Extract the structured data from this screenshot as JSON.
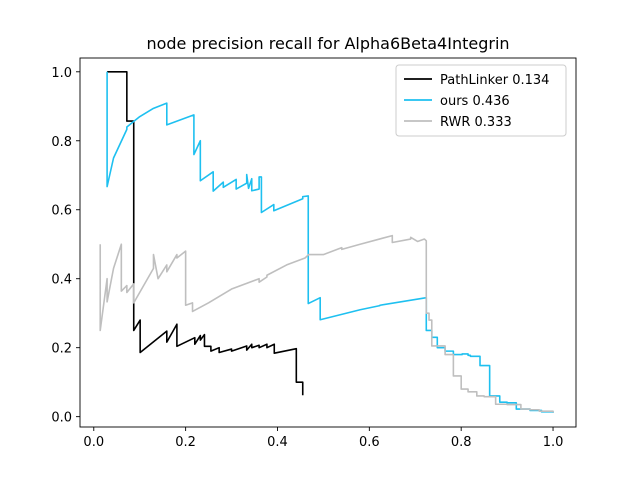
{
  "chart_data": {
    "type": "line",
    "title": "node precision recall for Alpha6Beta4Integrin",
    "xlabel": "",
    "ylabel": "",
    "xlim": [
      -0.03,
      1.05
    ],
    "ylim": [
      -0.03,
      1.04
    ],
    "xticks": [
      0.0,
      0.2,
      0.4,
      0.6,
      0.8,
      1.0
    ],
    "xtick_labels": [
      "0.0",
      "0.2",
      "0.4",
      "0.6",
      "0.8",
      "1.0"
    ],
    "yticks": [
      0.0,
      0.2,
      0.4,
      0.6,
      0.8,
      1.0
    ],
    "ytick_labels": [
      "0.0",
      "0.2",
      "0.4",
      "0.6",
      "0.8",
      "1.0"
    ],
    "grid": false,
    "legend_position": "top-right",
    "series": [
      {
        "name": "PathLinker 0.134",
        "color": "#000000",
        "points": [
          [
            0.029,
            1.0
          ],
          [
            0.072,
            1.0
          ],
          [
            0.072,
            0.857
          ],
          [
            0.087,
            0.857
          ],
          [
            0.087,
            0.25
          ],
          [
            0.101,
            0.28
          ],
          [
            0.101,
            0.186
          ],
          [
            0.159,
            0.248
          ],
          [
            0.159,
            0.216
          ],
          [
            0.181,
            0.268
          ],
          [
            0.181,
            0.204
          ],
          [
            0.22,
            0.229
          ],
          [
            0.22,
            0.21
          ],
          [
            0.232,
            0.235
          ],
          [
            0.232,
            0.222
          ],
          [
            0.241,
            0.238
          ],
          [
            0.241,
            0.204
          ],
          [
            0.255,
            0.204
          ],
          [
            0.255,
            0.19
          ],
          [
            0.273,
            0.2
          ],
          [
            0.273,
            0.186
          ],
          [
            0.3,
            0.196
          ],
          [
            0.3,
            0.19
          ],
          [
            0.333,
            0.205
          ],
          [
            0.333,
            0.193
          ],
          [
            0.344,
            0.21
          ],
          [
            0.344,
            0.2
          ],
          [
            0.36,
            0.207
          ],
          [
            0.36,
            0.2
          ],
          [
            0.377,
            0.21
          ],
          [
            0.377,
            0.2
          ],
          [
            0.393,
            0.21
          ],
          [
            0.393,
            0.184
          ],
          [
            0.441,
            0.197
          ],
          [
            0.441,
            0.1
          ],
          [
            0.455,
            0.1
          ],
          [
            0.455,
            0.062
          ]
        ]
      },
      {
        "name": "ours 0.436",
        "color": "#1ec0f0",
        "points": [
          [
            0.029,
            1.0
          ],
          [
            0.029,
            0.667
          ],
          [
            0.043,
            0.75
          ],
          [
            0.072,
            0.833
          ],
          [
            0.072,
            0.84
          ],
          [
            0.1,
            0.87
          ],
          [
            0.13,
            0.894
          ],
          [
            0.159,
            0.909
          ],
          [
            0.159,
            0.846
          ],
          [
            0.218,
            0.875
          ],
          [
            0.218,
            0.76
          ],
          [
            0.232,
            0.8
          ],
          [
            0.232,
            0.684
          ],
          [
            0.26,
            0.71
          ],
          [
            0.26,
            0.654
          ],
          [
            0.282,
            0.68
          ],
          [
            0.282,
            0.665
          ],
          [
            0.31,
            0.688
          ],
          [
            0.31,
            0.66
          ],
          [
            0.333,
            0.677
          ],
          [
            0.333,
            0.702
          ],
          [
            0.337,
            0.662
          ],
          [
            0.344,
            0.69
          ],
          [
            0.344,
            0.655
          ],
          [
            0.36,
            0.66
          ],
          [
            0.36,
            0.695
          ],
          [
            0.365,
            0.695
          ],
          [
            0.365,
            0.592
          ],
          [
            0.392,
            0.615
          ],
          [
            0.392,
            0.597
          ],
          [
            0.455,
            0.632
          ],
          [
            0.455,
            0.638
          ],
          [
            0.467,
            0.64
          ],
          [
            0.467,
            0.328
          ],
          [
            0.493,
            0.345
          ],
          [
            0.493,
            0.281
          ],
          [
            0.58,
            0.31
          ],
          [
            0.58,
            0.31
          ],
          [
            0.623,
            0.322
          ],
          [
            0.623,
            0.323
          ],
          [
            0.724,
            0.345
          ],
          [
            0.724,
            0.25
          ],
          [
            0.736,
            0.25
          ],
          [
            0.736,
            0.23
          ],
          [
            0.748,
            0.23
          ],
          [
            0.748,
            0.2
          ],
          [
            0.765,
            0.2
          ],
          [
            0.765,
            0.19
          ],
          [
            0.783,
            0.19
          ],
          [
            0.783,
            0.18
          ],
          [
            0.802,
            0.18
          ],
          [
            0.802,
            0.182
          ],
          [
            0.815,
            0.182
          ],
          [
            0.815,
            0.178
          ],
          [
            0.82,
            0.178
          ],
          [
            0.82,
            0.175
          ],
          [
            0.841,
            0.175
          ],
          [
            0.841,
            0.148
          ],
          [
            0.862,
            0.148
          ],
          [
            0.862,
            0.06
          ],
          [
            0.884,
            0.06
          ],
          [
            0.884,
            0.042
          ],
          [
            0.9,
            0.042
          ],
          [
            0.9,
            0.04
          ],
          [
            0.92,
            0.04
          ],
          [
            0.92,
            0.022
          ],
          [
            0.95,
            0.022
          ],
          [
            0.95,
            0.018
          ],
          [
            0.975,
            0.018
          ],
          [
            0.975,
            0.014
          ],
          [
            1.0,
            0.014
          ],
          [
            1.0,
            0.011
          ]
        ]
      },
      {
        "name": "RWR 0.333",
        "color": "#bfbfbf",
        "points": [
          [
            0.014,
            0.5
          ],
          [
            0.014,
            0.25
          ],
          [
            0.029,
            0.4
          ],
          [
            0.029,
            0.333
          ],
          [
            0.043,
            0.43
          ],
          [
            0.06,
            0.5
          ],
          [
            0.06,
            0.364
          ],
          [
            0.072,
            0.38
          ],
          [
            0.072,
            0.36
          ],
          [
            0.087,
            0.385
          ],
          [
            0.087,
            0.33
          ],
          [
            0.13,
            0.43
          ],
          [
            0.13,
            0.47
          ],
          [
            0.14,
            0.4
          ],
          [
            0.159,
            0.44
          ],
          [
            0.159,
            0.42
          ],
          [
            0.181,
            0.47
          ],
          [
            0.181,
            0.46
          ],
          [
            0.2,
            0.48
          ],
          [
            0.2,
            0.323
          ],
          [
            0.215,
            0.33
          ],
          [
            0.215,
            0.305
          ],
          [
            0.25,
            0.33
          ],
          [
            0.3,
            0.37
          ],
          [
            0.36,
            0.4
          ],
          [
            0.36,
            0.39
          ],
          [
            0.377,
            0.405
          ],
          [
            0.377,
            0.41
          ],
          [
            0.42,
            0.44
          ],
          [
            0.46,
            0.46
          ],
          [
            0.46,
            0.46
          ],
          [
            0.468,
            0.47
          ],
          [
            0.5,
            0.47
          ],
          [
            0.54,
            0.49
          ],
          [
            0.54,
            0.485
          ],
          [
            0.58,
            0.5
          ],
          [
            0.65,
            0.525
          ],
          [
            0.65,
            0.505
          ],
          [
            0.69,
            0.515
          ],
          [
            0.69,
            0.52
          ],
          [
            0.705,
            0.508
          ],
          [
            0.72,
            0.515
          ],
          [
            0.724,
            0.51
          ],
          [
            0.724,
            0.3
          ],
          [
            0.73,
            0.3
          ],
          [
            0.73,
            0.28
          ],
          [
            0.736,
            0.28
          ],
          [
            0.736,
            0.205
          ],
          [
            0.765,
            0.205
          ],
          [
            0.765,
            0.18
          ],
          [
            0.783,
            0.18
          ],
          [
            0.783,
            0.118
          ],
          [
            0.8,
            0.118
          ],
          [
            0.8,
            0.08
          ],
          [
            0.815,
            0.08
          ],
          [
            0.815,
            0.072
          ],
          [
            0.834,
            0.072
          ],
          [
            0.834,
            0.06
          ],
          [
            0.85,
            0.06
          ],
          [
            0.85,
            0.058
          ],
          [
            0.875,
            0.058
          ],
          [
            0.875,
            0.036
          ],
          [
            0.9,
            0.036
          ],
          [
            0.9,
            0.035
          ],
          [
            0.93,
            0.035
          ],
          [
            0.93,
            0.022
          ],
          [
            0.95,
            0.022
          ],
          [
            0.95,
            0.02
          ],
          [
            0.97,
            0.02
          ],
          [
            0.97,
            0.016
          ],
          [
            1.0,
            0.016
          ],
          [
            1.0,
            0.012
          ]
        ]
      }
    ]
  }
}
